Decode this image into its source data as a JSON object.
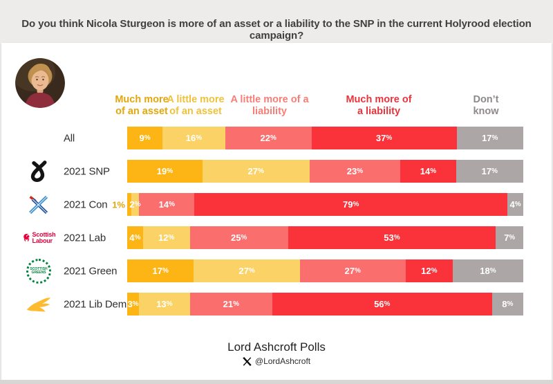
{
  "title": "Do you think Nicola Sturgeon is more of an asset or a liability to the SNP in the current Holyrood election campaign?",
  "chart_data": {
    "type": "bar",
    "variant": "horizontal-stacked",
    "unit": "%",
    "xlim": [
      0,
      100
    ],
    "categories": [
      "All",
      "2021 SNP",
      "2021 Con",
      "2021 Lab",
      "2021 Green",
      "2021 Lib Dem"
    ],
    "legend": [
      {
        "label": "Much more of an asset",
        "lines": [
          "Much more",
          "of an asset"
        ],
        "color": "#FCB515",
        "header_color": "#E3A60C"
      },
      {
        "label": "A little more of an asset",
        "lines": [
          "A little more",
          "of an asset"
        ],
        "color": "#FBD266",
        "header_color": "#EFC23C"
      },
      {
        "label": "A little more of a liability",
        "lines": [
          "A little more of a",
          "liability"
        ],
        "color": "#FA6F6E",
        "header_color": "#F87D76"
      },
      {
        "label": "Much more of a liability",
        "lines": [
          "Much more of",
          "a liability"
        ],
        "color": "#FA333B",
        "header_color": "#E7343C"
      },
      {
        "label": "Don’t know",
        "lines": [
          "Don’t",
          "know"
        ],
        "color": "#ACA6A6",
        "header_color": "#8E8989"
      }
    ],
    "series": [
      {
        "name": "Much more of an asset",
        "values": [
          9,
          19,
          1,
          4,
          17,
          3
        ]
      },
      {
        "name": "A little more of an asset",
        "values": [
          16,
          27,
          2,
          12,
          27,
          13
        ]
      },
      {
        "name": "A little more of a liability",
        "values": [
          22,
          23,
          14,
          25,
          27,
          21
        ]
      },
      {
        "name": "Much more of a liability",
        "values": [
          37,
          14,
          79,
          53,
          12,
          56
        ]
      },
      {
        "name": "Don’t know",
        "values": [
          17,
          17,
          4,
          7,
          18,
          8
        ]
      }
    ]
  },
  "rows": [
    {
      "label": "All",
      "logo": "none"
    },
    {
      "label": "2021 SNP",
      "logo": "snp"
    },
    {
      "label": "2021 Con",
      "logo": "con"
    },
    {
      "label": "2021 Lab",
      "logo": "lab",
      "logo_text": [
        "Scottish",
        "Labour"
      ]
    },
    {
      "label": "2021 Green",
      "logo": "green",
      "logo_text": [
        "SCOTTISH",
        "GREENS"
      ]
    },
    {
      "label": "2021 Lib Dem",
      "logo": "libdem"
    }
  ],
  "footer": {
    "title": "Lord Ashcroft Polls",
    "handle": "@LordAshcroft"
  }
}
